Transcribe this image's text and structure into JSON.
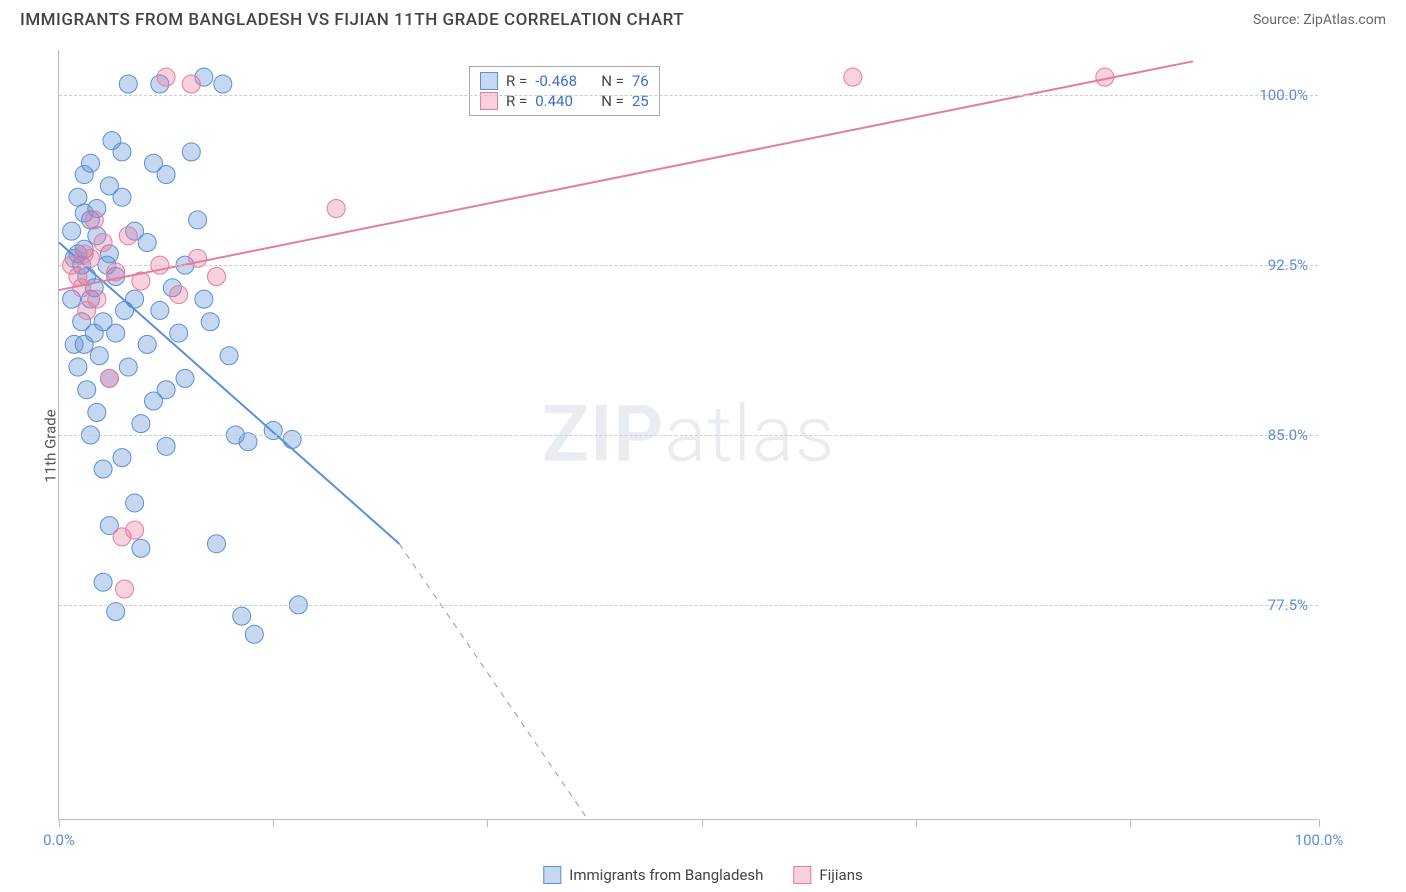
{
  "header": {
    "title": "IMMIGRANTS FROM BANGLADESH VS FIJIAN 11TH GRADE CORRELATION CHART",
    "source_label": "Source: ",
    "source_name": "ZipAtlas.com"
  },
  "y_axis": {
    "label": "11th Grade"
  },
  "watermark": {
    "zip": "ZIP",
    "atlas": "atlas"
  },
  "chart": {
    "type": "scatter",
    "xlim": [
      0,
      100
    ],
    "ylim": [
      68,
      102
    ],
    "y_ticks": [
      {
        "value": 100.0,
        "label": "100.0%"
      },
      {
        "value": 92.5,
        "label": "92.5%"
      },
      {
        "value": 85.0,
        "label": "85.0%"
      },
      {
        "value": 77.5,
        "label": "77.5%"
      }
    ],
    "x_ticks": [
      0,
      17,
      34,
      51,
      68,
      85,
      100
    ],
    "x_tick_labels": {
      "start": "0.0%",
      "end": "100.0%"
    },
    "grid_color": "#cccccc",
    "background_color": "#ffffff",
    "marker_radius": 9,
    "marker_opacity": 0.55,
    "line_width": 2,
    "series": [
      {
        "name": "Immigrants from Bangladesh",
        "color": "#5b8fd6",
        "fill": "rgba(91,143,214,0.35)",
        "stroke": "#5b8fd6",
        "R": "-0.468",
        "N": "76",
        "trend": {
          "x1": 0,
          "y1": 93.5,
          "x2": 27,
          "y2": 80.2,
          "dash_to_x": 42,
          "dash_to_y": 68
        },
        "points": [
          [
            1.5,
            93.0
          ],
          [
            1.8,
            92.5
          ],
          [
            2.0,
            93.2
          ],
          [
            2.2,
            92.0
          ],
          [
            1.0,
            91.0
          ],
          [
            2.5,
            94.5
          ],
          [
            3.0,
            93.8
          ],
          [
            1.2,
            92.8
          ],
          [
            2.8,
            91.5
          ],
          [
            3.5,
            90.0
          ],
          [
            4.0,
            96.0
          ],
          [
            5.0,
            97.5
          ],
          [
            6.0,
            94.0
          ],
          [
            2.0,
            89.0
          ],
          [
            3.2,
            88.5
          ],
          [
            4.5,
            92.0
          ],
          [
            7.5,
            97.0
          ],
          [
            8.5,
            96.5
          ],
          [
            3.0,
            86.0
          ],
          [
            4.0,
            87.5
          ],
          [
            5.5,
            88.0
          ],
          [
            6.5,
            85.5
          ],
          [
            2.5,
            85.0
          ],
          [
            7.0,
            93.5
          ],
          [
            8.0,
            90.5
          ],
          [
            9.5,
            89.5
          ],
          [
            10.5,
            97.5
          ],
          [
            11.0,
            94.5
          ],
          [
            3.5,
            83.5
          ],
          [
            5.0,
            84.0
          ],
          [
            6.0,
            82.0
          ],
          [
            4.5,
            89.5
          ],
          [
            12.0,
            90.0
          ],
          [
            13.5,
            88.5
          ],
          [
            7.5,
            86.5
          ],
          [
            8.5,
            84.5
          ],
          [
            2.0,
            96.5
          ],
          [
            3.0,
            95.0
          ],
          [
            5.5,
            100.5
          ],
          [
            14.0,
            85.0
          ],
          [
            15.0,
            84.7
          ],
          [
            4.0,
            81.0
          ],
          [
            6.5,
            80.0
          ],
          [
            9.0,
            91.5
          ],
          [
            10.0,
            92.5
          ],
          [
            11.5,
            91.0
          ],
          [
            3.5,
            78.5
          ],
          [
            12.5,
            80.2
          ],
          [
            5.0,
            95.5
          ],
          [
            1.5,
            88.0
          ],
          [
            2.2,
            87.0
          ],
          [
            17.0,
            85.2
          ],
          [
            18.5,
            84.8
          ],
          [
            8.0,
            100.5
          ],
          [
            11.5,
            100.8
          ],
          [
            13.0,
            100.5
          ],
          [
            1.8,
            90.0
          ],
          [
            2.5,
            91.0
          ],
          [
            4.0,
            93.0
          ],
          [
            6.0,
            91.0
          ],
          [
            7.0,
            89.0
          ],
          [
            1.0,
            94.0
          ],
          [
            2.0,
            94.8
          ],
          [
            3.8,
            92.5
          ],
          [
            5.2,
            90.5
          ],
          [
            8.5,
            87.0
          ],
          [
            10.0,
            87.5
          ],
          [
            14.5,
            77.0
          ],
          [
            19.0,
            77.5
          ],
          [
            4.5,
            77.2
          ],
          [
            15.5,
            76.2
          ],
          [
            2.5,
            97.0
          ],
          [
            4.2,
            98.0
          ],
          [
            1.5,
            95.5
          ],
          [
            2.8,
            89.5
          ],
          [
            1.2,
            89.0
          ]
        ]
      },
      {
        "name": "Fijians",
        "color": "#e77ba0",
        "fill": "rgba(231,123,160,0.35)",
        "stroke": "#e77ba0",
        "R": "0.440",
        "N": "25",
        "trend": {
          "x1": 0,
          "y1": 91.4,
          "x2": 90,
          "y2": 101.5
        },
        "points": [
          [
            1.0,
            92.5
          ],
          [
            1.5,
            92.0
          ],
          [
            2.0,
            93.0
          ],
          [
            1.8,
            91.5
          ],
          [
            2.5,
            92.8
          ],
          [
            3.0,
            91.0
          ],
          [
            2.2,
            90.5
          ],
          [
            3.5,
            93.5
          ],
          [
            4.5,
            92.2
          ],
          [
            5.5,
            93.8
          ],
          [
            6.5,
            91.8
          ],
          [
            8.0,
            92.5
          ],
          [
            9.5,
            91.2
          ],
          [
            11.0,
            92.8
          ],
          [
            12.5,
            92.0
          ],
          [
            4.0,
            87.5
          ],
          [
            5.0,
            80.5
          ],
          [
            6.0,
            80.8
          ],
          [
            5.2,
            78.2
          ],
          [
            22.0,
            95.0
          ],
          [
            8.5,
            100.8
          ],
          [
            10.5,
            100.5
          ],
          [
            63.0,
            100.8
          ],
          [
            83.0,
            100.8
          ],
          [
            2.8,
            94.5
          ]
        ]
      }
    ]
  },
  "legend_top": {
    "rows": [
      {
        "series_index": 0,
        "r_label": "R =",
        "n_label": "N ="
      },
      {
        "series_index": 1,
        "r_label": "R =",
        "n_label": "N ="
      }
    ]
  },
  "legend_bottom": {
    "items": [
      {
        "series_index": 0
      },
      {
        "series_index": 1
      }
    ]
  }
}
